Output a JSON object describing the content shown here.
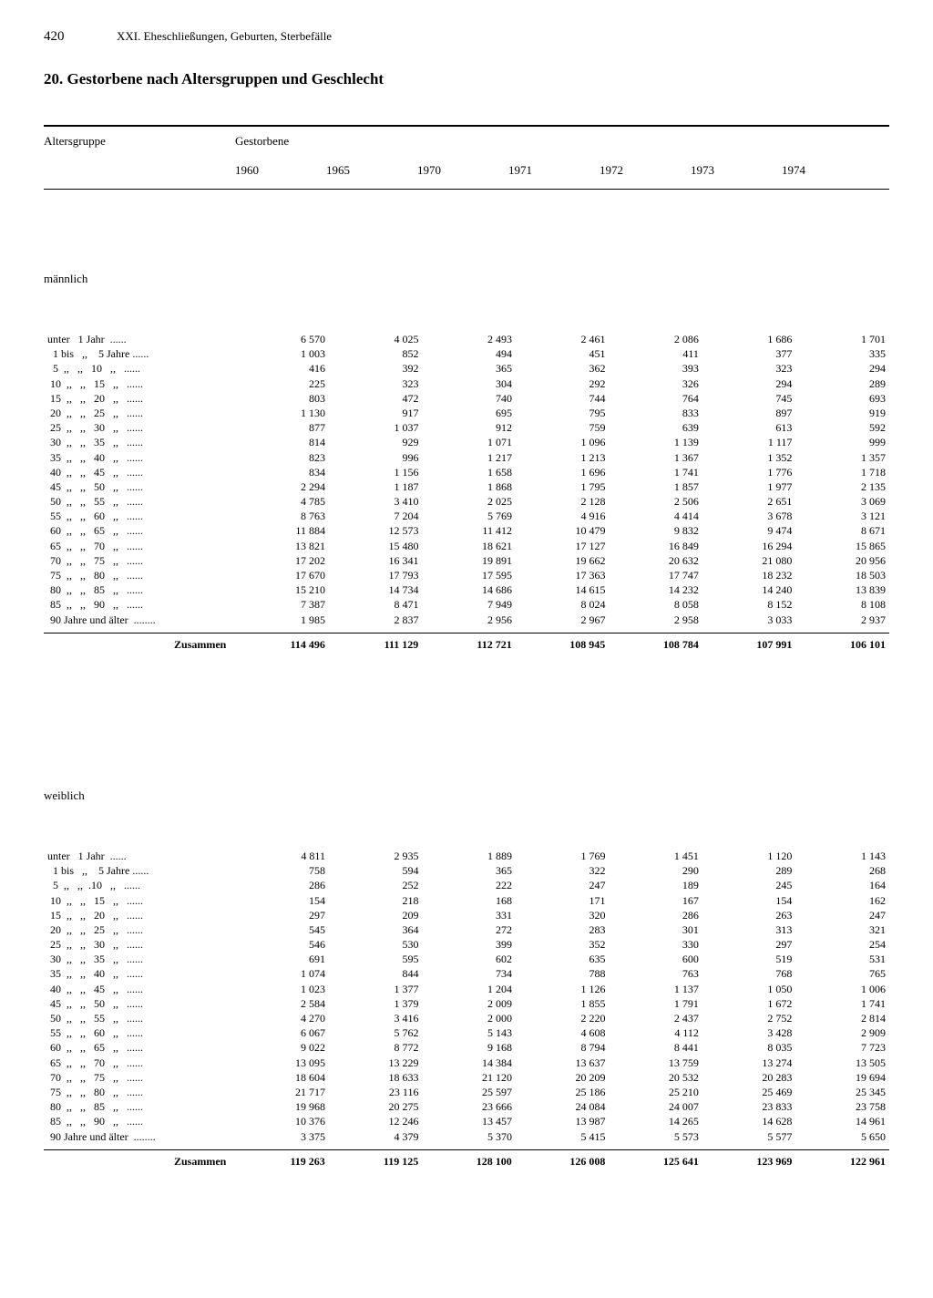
{
  "page_number": "420",
  "chapter": "XXI. Eheschließungen, Geburten, Sterbefälle",
  "title": "20. Gestorbene nach Altersgruppen und Geschlecht",
  "col_label_1": "Altersgruppe",
  "col_label_2": "Gestorbene",
  "years": [
    "1960",
    "1965",
    "1970",
    "1971",
    "1972",
    "1973",
    "1974"
  ],
  "sections": [
    {
      "label": "männlich",
      "rows": [
        {
          "age": "unter   1 Jahr  ......",
          "vals": [
            "6 570",
            "4 025",
            "2 493",
            "2 461",
            "2 086",
            "1 686",
            "1 701"
          ]
        },
        {
          "age": "  1 bis   ,,    5 Jahre ......",
          "vals": [
            "1 003",
            "852",
            "494",
            "451",
            "411",
            "377",
            "335"
          ]
        },
        {
          "age": "  5  ,,   ,,   10   ,,   ......",
          "vals": [
            "416",
            "392",
            "365",
            "362",
            "393",
            "323",
            "294"
          ]
        },
        {
          "age": " 10  ,,   ,,   15   ,,   ......",
          "vals": [
            "225",
            "323",
            "304",
            "292",
            "326",
            "294",
            "289"
          ]
        },
        {
          "age": " 15  ,,   ,,   20   ,,   ......",
          "vals": [
            "803",
            "472",
            "740",
            "744",
            "764",
            "745",
            "693"
          ]
        },
        {
          "age": " 20  ,,   ,,   25   ,,   ......",
          "vals": [
            "1 130",
            "917",
            "695",
            "795",
            "833",
            "897",
            "919"
          ]
        },
        {
          "age": " 25  ,,   ,,   30   ,,   ......",
          "vals": [
            "877",
            "1 037",
            "912",
            "759",
            "639",
            "613",
            "592"
          ]
        },
        {
          "age": " 30  ,,   ,,   35   ,,   ......",
          "vals": [
            "814",
            "929",
            "1 071",
            "1 096",
            "1 139",
            "1 117",
            "999"
          ]
        },
        {
          "age": " 35  ,,   ,,   40   ,,   ......",
          "vals": [
            "823",
            "996",
            "1 217",
            "1 213",
            "1 367",
            "1 352",
            "1 357"
          ]
        },
        {
          "age": " 40  ,,   ,,   45   ,,   ......",
          "vals": [
            "834",
            "1 156",
            "1 658",
            "1 696",
            "1 741",
            "1 776",
            "1 718"
          ]
        },
        {
          "age": " 45  ,,   ,,   50   ,,   ......",
          "vals": [
            "2 294",
            "1 187",
            "1 868",
            "1 795",
            "1 857",
            "1 977",
            "2 135"
          ]
        },
        {
          "age": " 50  ,,   ,,   55   ,,   ......",
          "vals": [
            "4 785",
            "3 410",
            "2 025",
            "2 128",
            "2 506",
            "2 651",
            "3 069"
          ]
        },
        {
          "age": " 55  ,,   ,,   60   ,,   ......",
          "vals": [
            "8 763",
            "7 204",
            "5 769",
            "4 916",
            "4 414",
            "3 678",
            "3 121"
          ]
        },
        {
          "age": " 60  ,,   ,,   65   ,,   ......",
          "vals": [
            "11 884",
            "12 573",
            "11 412",
            "10 479",
            "9 832",
            "9 474",
            "8 671"
          ]
        },
        {
          "age": " 65  ,,   ,,   70   ,,   ......",
          "vals": [
            "13 821",
            "15 480",
            "18 621",
            "17 127",
            "16 849",
            "16 294",
            "15 865"
          ]
        },
        {
          "age": " 70  ,,   ,,   75   ,,   ......",
          "vals": [
            "17 202",
            "16 341",
            "19 891",
            "19 662",
            "20 632",
            "21 080",
            "20 956"
          ]
        },
        {
          "age": " 75  ,,   ,,   80   ,,   ......",
          "vals": [
            "17 670",
            "17 793",
            "17 595",
            "17 363",
            "17 747",
            "18 232",
            "18 503"
          ]
        },
        {
          "age": " 80  ,,   ,,   85   ,,   ......",
          "vals": [
            "15 210",
            "14 734",
            "14 686",
            "14 615",
            "14 232",
            "14 240",
            "13 839"
          ]
        },
        {
          "age": " 85  ,,   ,,   90   ,,   ......",
          "vals": [
            "7 387",
            "8 471",
            "7 949",
            "8 024",
            "8 058",
            "8 152",
            "8 108"
          ]
        },
        {
          "age": " 90 Jahre und älter  ........",
          "vals": [
            "1 985",
            "2 837",
            "2 956",
            "2 967",
            "2 958",
            "3 033",
            "2 937"
          ]
        }
      ],
      "sum_label": "Zusammen",
      "sum_vals": [
        "114 496",
        "111 129",
        "112 721",
        "108 945",
        "108 784",
        "107 991",
        "106 101"
      ]
    },
    {
      "label": "weiblich",
      "rows": [
        {
          "age": "unter   1 Jahr  ......",
          "vals": [
            "4 811",
            "2 935",
            "1 889",
            "1 769",
            "1 451",
            "1 120",
            "1 143"
          ]
        },
        {
          "age": "  1 bis   ,,    5 Jahre ......",
          "vals": [
            "758",
            "594",
            "365",
            "322",
            "290",
            "289",
            "268"
          ]
        },
        {
          "age": "  5  ,,   ,,  .10   ,,   ......",
          "vals": [
            "286",
            "252",
            "222",
            "247",
            "189",
            "245",
            "164"
          ]
        },
        {
          "age": " 10  ,,   ,,   15   ,,   ......",
          "vals": [
            "154",
            "218",
            "168",
            "171",
            "167",
            "154",
            "162"
          ]
        },
        {
          "age": " 15  ,,   ,,   20   ,,   ......",
          "vals": [
            "297",
            "209",
            "331",
            "320",
            "286",
            "263",
            "247"
          ]
        },
        {
          "age": " 20  ,,   ,,   25   ,,   ......",
          "vals": [
            "545",
            "364",
            "272",
            "283",
            "301",
            "313",
            "321"
          ]
        },
        {
          "age": " 25  ,,   ,,   30   ,,   ......",
          "vals": [
            "546",
            "530",
            "399",
            "352",
            "330",
            "297",
            "254"
          ]
        },
        {
          "age": " 30  ,,   ,,   35   ,,   ......",
          "vals": [
            "691",
            "595",
            "602",
            "635",
            "600",
            "519",
            "531"
          ]
        },
        {
          "age": " 35  ,,   ,,   40   ,,   ......",
          "vals": [
            "1 074",
            "844",
            "734",
            "788",
            "763",
            "768",
            "765"
          ]
        },
        {
          "age": " 40  ,,   ,,   45   ,,   ......",
          "vals": [
            "1 023",
            "1 377",
            "1 204",
            "1 126",
            "1 137",
            "1 050",
            "1 006"
          ]
        },
        {
          "age": " 45  ,,   ,,   50   ,,   ......",
          "vals": [
            "2 584",
            "1 379",
            "2 009",
            "1 855",
            "1 791",
            "1 672",
            "1 741"
          ]
        },
        {
          "age": " 50  ,,   ,,   55   ,,   ......",
          "vals": [
            "4 270",
            "3 416",
            "2 000",
            "2 220",
            "2 437",
            "2 752",
            "2 814"
          ]
        },
        {
          "age": " 55  ,,   ,,   60   ,,   ......",
          "vals": [
            "6 067",
            "5 762",
            "5 143",
            "4 608",
            "4 112",
            "3 428",
            "2 909"
          ]
        },
        {
          "age": " 60  ,,   ,,   65   ,,   ......",
          "vals": [
            "9 022",
            "8 772",
            "9 168",
            "8 794",
            "8 441",
            "8 035",
            "7 723"
          ]
        },
        {
          "age": " 65  ,,   ,,   70   ,,   ......",
          "vals": [
            "13 095",
            "13 229",
            "14 384",
            "13 637",
            "13 759",
            "13 274",
            "13 505"
          ]
        },
        {
          "age": " 70  ,,   ,,   75   ,,   ......",
          "vals": [
            "18 604",
            "18 633",
            "21 120",
            "20 209",
            "20 532",
            "20 283",
            "19 694"
          ]
        },
        {
          "age": " 75  ,,   ,,   80   ,,   ......",
          "vals": [
            "21 717",
            "23 116",
            "25 597",
            "25 186",
            "25 210",
            "25 469",
            "25 345"
          ]
        },
        {
          "age": " 80  ,,   ,,   85   ,,   ......",
          "vals": [
            "19 968",
            "20 275",
            "23 666",
            "24 084",
            "24 007",
            "23 833",
            "23 758"
          ]
        },
        {
          "age": " 85  ,,   ,,   90   ,,   ......",
          "vals": [
            "10 376",
            "12 246",
            "13 457",
            "13 987",
            "14 265",
            "14 628",
            "14 961"
          ]
        },
        {
          "age": " 90 Jahre und älter  ........",
          "vals": [
            "3 375",
            "4 379",
            "5 370",
            "5 415",
            "5 573",
            "5 577",
            "5 650"
          ]
        }
      ],
      "sum_label": "Zusammen",
      "sum_vals": [
        "119 263",
        "119 125",
        "128 100",
        "126 008",
        "125 641",
        "123 969",
        "122 961"
      ]
    }
  ]
}
